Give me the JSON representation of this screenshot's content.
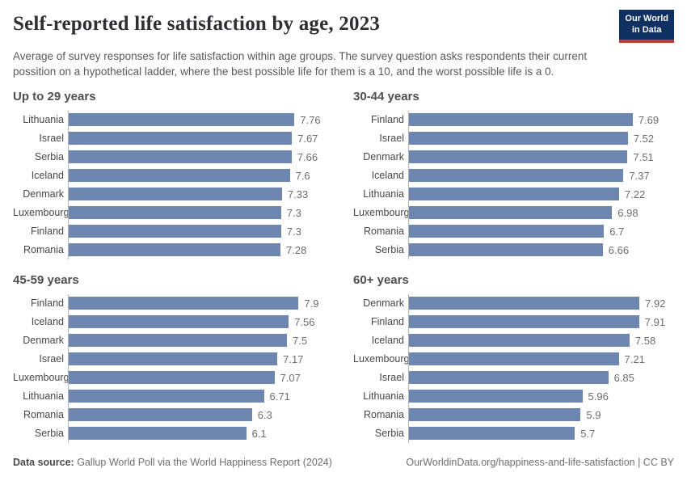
{
  "header": {
    "title": "Self-reported life satisfaction by age, 2023",
    "subtitle": "Average of survey responses for life satisfaction within age groups. The survey question asks respondents their current possition on a hypothetical ladder, where the best possible life for them is a 10, and the worst possible life is a 0.",
    "logo": {
      "line1": "Our World",
      "line2": "in Data"
    }
  },
  "chart_data": {
    "type": "bar",
    "orientation": "horizontal",
    "value_range": [
      0,
      8
    ],
    "grid": false,
    "bar_color": "#6e87b0",
    "panels": [
      {
        "title": "Up to 29 years",
        "categories": [
          "Lithuania",
          "Israel",
          "Serbia",
          "Iceland",
          "Denmark",
          "Luxembourg",
          "Finland",
          "Romania"
        ],
        "values": [
          7.76,
          7.67,
          7.66,
          7.6,
          7.33,
          7.3,
          7.3,
          7.28
        ]
      },
      {
        "title": "30-44 years",
        "categories": [
          "Finland",
          "Israel",
          "Denmark",
          "Iceland",
          "Lithuania",
          "Luxembourg",
          "Romania",
          "Serbia"
        ],
        "values": [
          7.69,
          7.52,
          7.51,
          7.37,
          7.22,
          6.98,
          6.7,
          6.66
        ]
      },
      {
        "title": "45-59 years",
        "categories": [
          "Finland",
          "Iceland",
          "Denmark",
          "Israel",
          "Luxembourg",
          "Lithuania",
          "Romania",
          "Serbia"
        ],
        "values": [
          7.9,
          7.56,
          7.5,
          7.17,
          7.07,
          6.71,
          6.3,
          6.1
        ]
      },
      {
        "title": "60+ years",
        "categories": [
          "Denmark",
          "Finland",
          "Iceland",
          "Luxembourg",
          "Israel",
          "Lithuania",
          "Romania",
          "Serbia"
        ],
        "values": [
          7.92,
          7.91,
          7.58,
          7.21,
          6.85,
          5.96,
          5.9,
          5.7
        ]
      }
    ]
  },
  "footer": {
    "source_label": "Data source:",
    "source_text": " Gallup World Poll via the World Happiness Report (2024)",
    "credit": "OurWorldinData.org/happiness-and-life-satisfaction | CC BY"
  },
  "colors": {
    "bar": "#6e87b0",
    "logo_navy": "#103061",
    "logo_red": "#c43a31",
    "axis_line": "#b3b3b3"
  }
}
